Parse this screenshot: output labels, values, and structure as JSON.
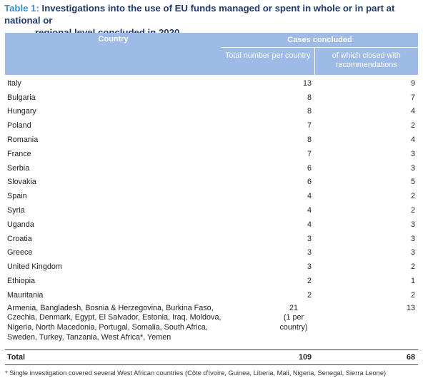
{
  "title": {
    "label": "Table 1:",
    "line1": "Investigations into the use of EU funds managed or spent in whole or in part at national or",
    "line2": "regional level concluded in 2020"
  },
  "header": {
    "country": "Country",
    "cases": "Cases concluded",
    "total": "Total number per country",
    "closed": "of which closed with recommendations"
  },
  "rows": [
    {
      "country": "Italy",
      "total": "13",
      "closed": "9"
    },
    {
      "country": "Bulgaria",
      "total": "8",
      "closed": "7"
    },
    {
      "country": "Hungary",
      "total": "8",
      "closed": "4"
    },
    {
      "country": "Poland",
      "total": "7",
      "closed": "2"
    },
    {
      "country": "Romania",
      "total": "8",
      "closed": "4"
    },
    {
      "country": "France",
      "total": "7",
      "closed": "3"
    },
    {
      "country": "Serbia",
      "total": "6",
      "closed": "3"
    },
    {
      "country": "Slovakia",
      "total": "6",
      "closed": "5"
    },
    {
      "country": "Spain",
      "total": "4",
      "closed": "2"
    },
    {
      "country": "Syria",
      "total": "4",
      "closed": "2"
    },
    {
      "country": "Uganda",
      "total": "4",
      "closed": "3"
    },
    {
      "country": "Croatia",
      "total": "3",
      "closed": "3"
    },
    {
      "country": "Greece",
      "total": "3",
      "closed": "3"
    },
    {
      "country": "United Kingdom",
      "total": "3",
      "closed": "2"
    },
    {
      "country": "Ethiopia",
      "total": "2",
      "closed": "1"
    },
    {
      "country": "Mauritania",
      "total": "2",
      "closed": "2"
    }
  ],
  "other": {
    "countries": "Armenia, Bangladesh, Bosnia & Herzegovina, Burkina Faso, Czechia, Denmark, Egypt, El Salvador, Estonia, Iraq, Moldova, Nigeria, North Macedonia, Portugal, Somalia, South Africa, Sweden, Turkey, Tanzania, West Africa*, Yemen",
    "total": "21",
    "total_note": "(1 per country)",
    "closed": "13"
  },
  "footer": {
    "label": "Total",
    "total": "109",
    "closed": "68"
  },
  "footnote": "* Single investigation covered several West African countries (Côte d’Ivoire, Guinea, Liberia, Mali, Nigeria, Senegal, Sierra Leone)",
  "colors": {
    "header_bg": "#9dbbe6",
    "title": "#1f3a6e",
    "title_label": "#3a8fcf"
  }
}
